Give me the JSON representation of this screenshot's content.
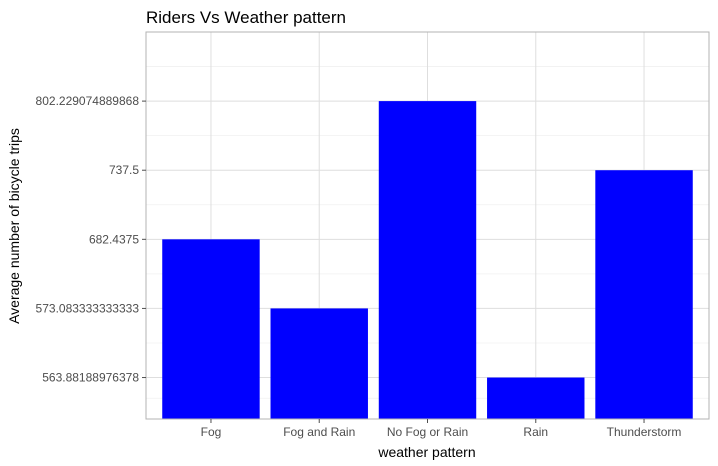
{
  "chart_data": {
    "type": "bar",
    "title": "Riders Vs Weather pattern",
    "xlabel": "weather pattern",
    "ylabel": "Average number of bicycle trips",
    "y_scale": "discrete",
    "categories": [
      "Fog",
      "Fog and Rain",
      "No Fog or Rain",
      "Rain",
      "Thunderstorm"
    ],
    "y_tick_labels": [
      "563.88188976378",
      "573.083333333333",
      "682.4375",
      "737.5",
      "802.229074889868"
    ],
    "values": [
      "682.4375",
      "573.083333333333",
      "802.229074889868",
      "563.88188976378",
      "737.5"
    ],
    "bar_color": "#0000ff",
    "grid": true,
    "legend": "none"
  }
}
